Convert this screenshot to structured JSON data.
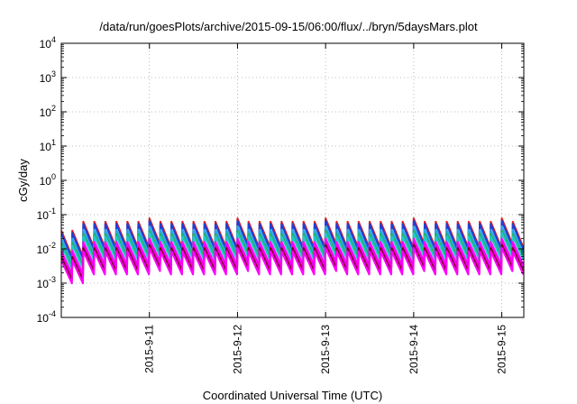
{
  "chart_data": {
    "type": "line",
    "title": "/data/run/goesPlots/archive/2015-09-15/06:00/flux/../bryn/5daysMars.plot",
    "xlabel": "Coordinated Universal Time (UTC)",
    "ylabel": "cGy/day",
    "y_scale": "log",
    "ylim": [
      0.0001,
      10000
    ],
    "y_ticks": [
      {
        "base": "10",
        "exp": "-4",
        "value": 0.0001
      },
      {
        "base": "10",
        "exp": "-3",
        "value": 0.001
      },
      {
        "base": "10",
        "exp": "-2",
        "value": 0.01
      },
      {
        "base": "10",
        "exp": "-1",
        "value": 0.1
      },
      {
        "base": "10",
        "exp": "0",
        "value": 1
      },
      {
        "base": "10",
        "exp": "1",
        "value": 10
      },
      {
        "base": "10",
        "exp": "2",
        "value": 100
      },
      {
        "base": "10",
        "exp": "3",
        "value": 1000
      },
      {
        "base": "10",
        "exp": "4",
        "value": 10000
      }
    ],
    "xlim": [
      "2015-09-10T00:00",
      "2015-09-15T06:00"
    ],
    "x_ticks": [
      {
        "label": "2015-9-11",
        "value": "2015-09-11T00:00"
      },
      {
        "label": "2015-9-12",
        "value": "2015-09-12T00:00"
      },
      {
        "label": "2015-9-13",
        "value": "2015-09-13T00:00"
      },
      {
        "label": "2015-9-14",
        "value": "2015-09-14T00:00"
      },
      {
        "label": "2015-9-15",
        "value": "2015-09-15T00:00"
      }
    ],
    "grid": true,
    "legend": "none",
    "cycle_hours": 3,
    "series": [
      {
        "color": "#e0201c",
        "peak": 0.062,
        "trough": 0.011
      },
      {
        "color": "#1f3fd6",
        "peak": 0.053,
        "trough": 0.0095
      },
      {
        "color": "#2aa7e8",
        "peak": 0.036,
        "trough": 0.0075
      },
      {
        "color": "#22b35a",
        "peak": 0.027,
        "trough": 0.0058
      },
      {
        "color": "#20c8c8",
        "peak": 0.023,
        "trough": 0.0048
      },
      {
        "color": "#ff00ff",
        "peak": 0.016,
        "trough": 0.0034
      },
      {
        "color": "#ee00ee",
        "peak": 0.013,
        "trough": 0.0027
      },
      {
        "color": "#800020",
        "peak": 0.0105,
        "trough": 0.0022
      },
      {
        "color": "#ff00ff",
        "peak": 0.0085,
        "trough": 0.0018
      }
    ],
    "early_period": {
      "until": "2015-09-10T06:00",
      "scale": 0.55
    },
    "day_start_boost": {
      "scale": 1.25
    }
  }
}
